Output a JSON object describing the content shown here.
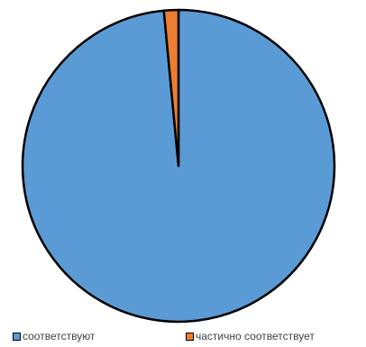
{
  "chart_data": {
    "type": "pie",
    "slices": [
      {
        "label": "соответствуют",
        "value": 98.5,
        "color": "#5B9BD5"
      },
      {
        "label": "частично соответствует",
        "value": 1.5,
        "color": "#ED7D31"
      }
    ],
    "legend_position": "bottom",
    "start_angle": "12 o'clock",
    "direction": "clockwise"
  },
  "legend": {
    "item1": "соответствуют",
    "item2": "частично соответствует"
  }
}
